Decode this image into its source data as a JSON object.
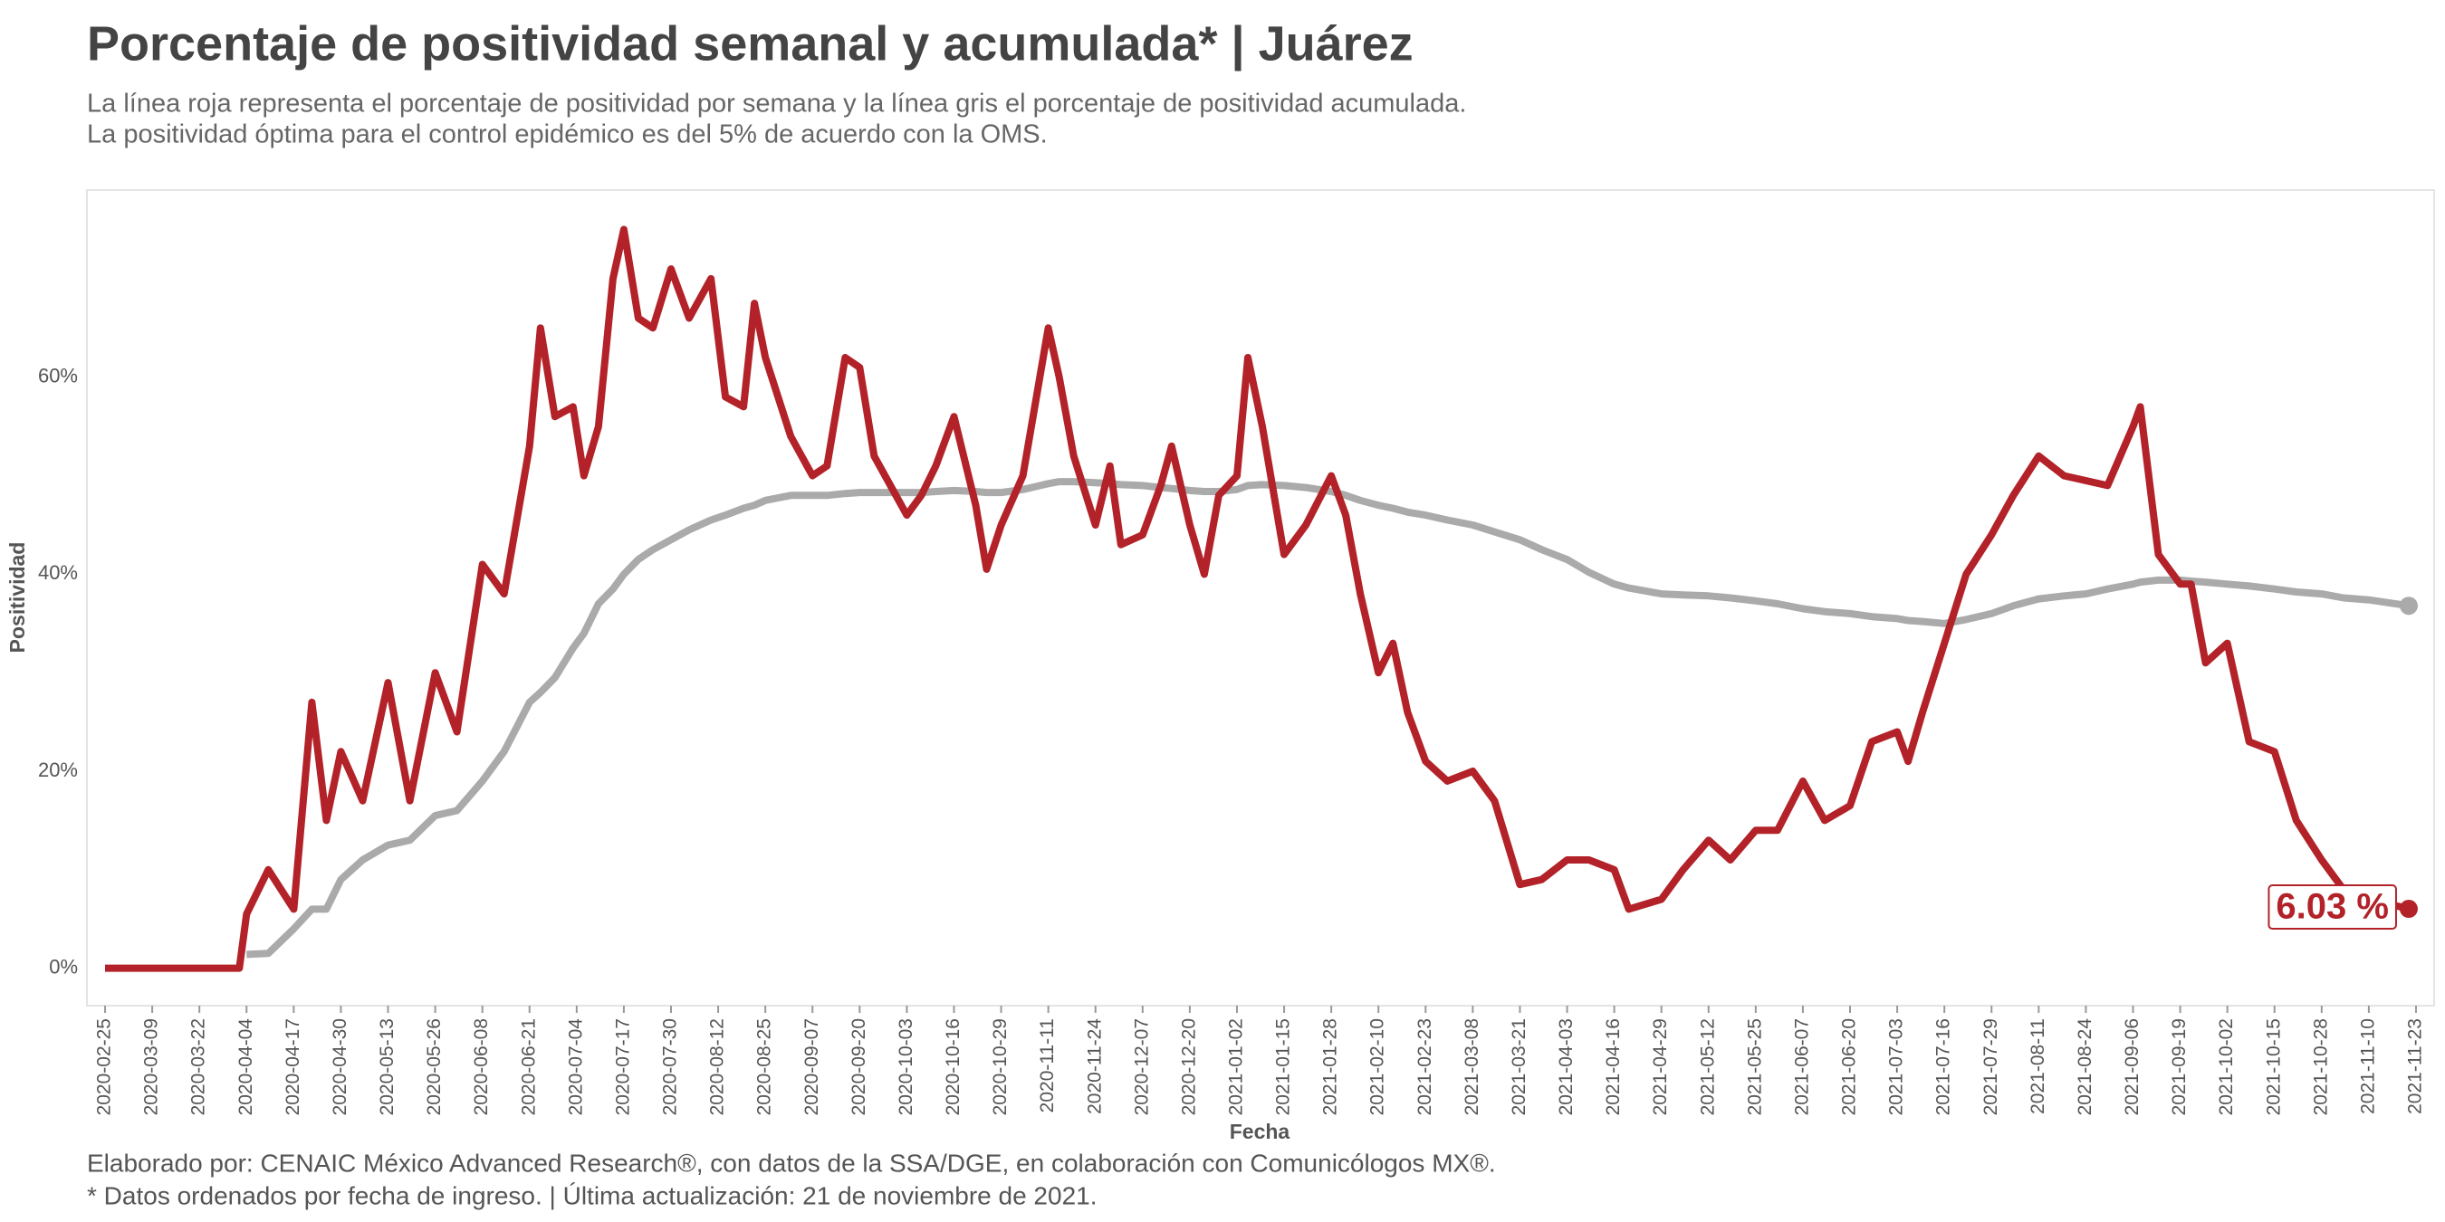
{
  "chart_data": {
    "type": "line",
    "title": "Porcentaje de positividad semanal y acumulada* | Juárez",
    "subtitle": [
      "La línea roja representa el porcentaje de positividad por semana y la línea gris el porcentaje de positividad acumulada.",
      "La positividad óptima para el control epidémico es del 5% de acuerdo con la OMS."
    ],
    "caption": [
      "Elaborado por: CENAIC México Advanced Research®, con datos de la SSA/DGE, en colaboración con Comunicólogos MX®.",
      "* Datos ordenados por fecha de ingreso. | Última actualización: 21 de noviembre de 2021."
    ],
    "x_label": "Fecha",
    "y_label": "Positividad",
    "x": [
      "2020-02-25",
      "2020-03-09",
      "2020-03-22",
      "2020-04-02",
      "2020-04-04",
      "2020-04-10",
      "2020-04-17",
      "2020-04-22",
      "2020-04-26",
      "2020-04-30",
      "2020-05-06",
      "2020-05-13",
      "2020-05-19",
      "2020-05-26",
      "2020-06-01",
      "2020-06-08",
      "2020-06-14",
      "2020-06-21",
      "2020-06-24",
      "2020-06-28",
      "2020-07-03",
      "2020-07-06",
      "2020-07-10",
      "2020-07-14",
      "2020-07-17",
      "2020-07-21",
      "2020-07-25",
      "2020-07-30",
      "2020-08-04",
      "2020-08-10",
      "2020-08-14",
      "2020-08-19",
      "2020-08-22",
      "2020-08-25",
      "2020-09-01",
      "2020-09-07",
      "2020-09-11",
      "2020-09-16",
      "2020-09-20",
      "2020-09-24",
      "2020-10-03",
      "2020-10-07",
      "2020-10-11",
      "2020-10-16",
      "2020-10-22",
      "2020-10-25",
      "2020-10-29",
      "2020-11-04",
      "2020-11-11",
      "2020-11-14",
      "2020-11-18",
      "2020-11-24",
      "2020-11-28",
      "2020-12-01",
      "2020-12-07",
      "2020-12-12",
      "2020-12-15",
      "2020-12-20",
      "2020-12-24",
      "2020-12-28",
      "2021-01-02",
      "2021-01-05",
      "2021-01-09",
      "2021-01-15",
      "2021-01-21",
      "2021-01-28",
      "2021-02-01",
      "2021-02-05",
      "2021-02-10",
      "2021-02-14",
      "2021-02-18",
      "2021-02-23",
      "2021-03-01",
      "2021-03-08",
      "2021-03-14",
      "2021-03-21",
      "2021-03-27",
      "2021-04-03",
      "2021-04-09",
      "2021-04-16",
      "2021-04-20",
      "2021-04-29",
      "2021-05-05",
      "2021-05-12",
      "2021-05-18",
      "2021-05-25",
      "2021-05-31",
      "2021-06-07",
      "2021-06-13",
      "2021-06-20",
      "2021-06-26",
      "2021-07-03",
      "2021-07-06",
      "2021-07-10",
      "2021-07-16",
      "2021-07-22",
      "2021-07-29",
      "2021-08-04",
      "2021-08-11",
      "2021-08-18",
      "2021-08-24",
      "2021-08-30",
      "2021-09-06",
      "2021-09-08",
      "2021-09-13",
      "2021-09-19",
      "2021-09-22",
      "2021-09-26",
      "2021-10-02",
      "2021-10-08",
      "2021-10-15",
      "2021-10-21",
      "2021-10-28",
      "2021-11-03",
      "2021-11-10",
      "2021-11-21"
    ],
    "series": [
      {
        "color": "#b22228",
        "values": [
          0,
          0,
          0,
          0,
          5.5,
          10,
          6,
          27,
          15,
          22,
          17,
          29,
          17,
          30,
          24,
          41,
          38,
          53,
          65,
          56,
          57,
          50,
          55,
          70,
          75,
          66,
          65,
          71,
          66,
          70,
          58,
          57,
          67.5,
          62,
          54,
          50,
          51,
          62,
          61,
          52,
          46,
          48,
          51,
          56,
          47,
          40.5,
          45,
          50,
          65,
          60,
          52,
          45,
          51,
          43,
          44,
          49,
          53,
          45,
          40,
          48,
          50,
          62,
          55,
          42,
          45,
          50,
          46,
          38,
          30,
          33,
          26,
          21,
          19,
          20,
          17,
          8.5,
          9,
          11,
          11,
          10,
          6,
          7,
          10,
          13,
          11,
          14,
          14,
          19,
          15,
          16.5,
          23,
          24,
          21,
          26,
          33,
          40,
          44,
          48,
          52,
          50,
          49.5,
          49,
          55,
          57,
          42,
          39,
          39,
          31,
          33,
          23,
          22,
          15,
          11,
          8,
          7,
          6.03
        ],
        "value_labels": [
          null,
          null,
          null,
          null,
          null,
          null,
          null,
          null,
          null,
          null,
          null,
          null,
          null,
          null,
          null,
          null,
          null,
          null,
          null,
          null,
          null,
          null,
          null,
          null,
          null,
          null,
          null,
          null,
          null,
          null,
          null,
          null,
          null,
          null,
          null,
          null,
          null,
          null,
          null,
          null,
          null,
          null,
          null,
          null,
          null,
          null,
          null,
          null,
          null,
          null,
          null,
          null,
          null,
          null,
          null,
          null,
          null,
          null,
          null,
          null,
          null,
          null,
          null,
          null,
          null,
          null,
          null,
          null,
          null,
          null,
          null,
          null,
          null,
          null,
          null,
          null,
          null,
          null,
          null,
          null,
          null,
          null,
          null,
          null,
          null,
          null,
          null,
          null,
          null,
          null,
          null,
          null,
          null,
          null,
          null,
          null,
          null,
          null,
          null,
          null,
          null,
          null,
          null,
          null,
          null,
          null,
          null,
          null,
          null,
          null,
          null,
          null,
          null,
          null,
          null,
          "6.03 %"
        ]
      },
      {
        "color": "#aaaaaa",
        "values": [
          null,
          null,
          null,
          null,
          1.4,
          1.5,
          4,
          6,
          6,
          9,
          11,
          12.5,
          13,
          15.5,
          16,
          19,
          22,
          27,
          28,
          29.5,
          32.5,
          34,
          37,
          38.5,
          40,
          41.5,
          42.5,
          43.5,
          44.5,
          45.5,
          46,
          46.7,
          47,
          47.5,
          48,
          48,
          48,
          48.2,
          48.3,
          48.3,
          48.3,
          48.3,
          48.4,
          48.5,
          48.4,
          48.3,
          48.3,
          48.6,
          49.2,
          49.4,
          49.4,
          49.3,
          49.2,
          49.1,
          49,
          48.8,
          48.7,
          48.5,
          48.4,
          48.4,
          48.6,
          49,
          49.1,
          49,
          48.8,
          48.4,
          48,
          47.5,
          47,
          46.7,
          46.3,
          46,
          45.5,
          45,
          44.3,
          43.5,
          42.5,
          41.5,
          40.2,
          39,
          38.6,
          38,
          37.9,
          37.8,
          37.6,
          37.3,
          37,
          36.5,
          36.2,
          36,
          35.7,
          35.5,
          35.3,
          35.2,
          35,
          35.4,
          36,
          36.8,
          37.5,
          37.8,
          38,
          38.5,
          39,
          39.2,
          39.4,
          39.4,
          39.3,
          39.2,
          39,
          38.8,
          38.5,
          38.2,
          38,
          37.6,
          37.4,
          36.8
        ]
      }
    ],
    "xlim": [
      "2020-02-20",
      "2021-11-28"
    ],
    "xticks": [
      "2020-02-25",
      "2020-03-09",
      "2020-03-22",
      "2020-04-04",
      "2020-04-17",
      "2020-04-30",
      "2020-05-13",
      "2020-05-26",
      "2020-06-08",
      "2020-06-21",
      "2020-07-04",
      "2020-07-17",
      "2020-07-30",
      "2020-08-12",
      "2020-08-25",
      "2020-09-07",
      "2020-09-20",
      "2020-10-03",
      "2020-10-16",
      "2020-10-29",
      "2020-11-11",
      "2020-11-24",
      "2020-12-07",
      "2020-12-20",
      "2021-01-02",
      "2021-01-15",
      "2021-01-28",
      "2021-02-10",
      "2021-02-23",
      "2021-03-08",
      "2021-03-21",
      "2021-04-03",
      "2021-04-16",
      "2021-04-29",
      "2021-05-12",
      "2021-05-25",
      "2021-06-07",
      "2021-06-20",
      "2021-07-03",
      "2021-07-16",
      "2021-07-29",
      "2021-08-11",
      "2021-08-24",
      "2021-09-06",
      "2021-09-19",
      "2021-10-02",
      "2021-10-15",
      "2021-10-28",
      "2021-11-10",
      "2021-11-23"
    ],
    "ylim": [
      -3.8,
      79
    ],
    "yticks": [
      {
        "value": 0,
        "label": "0%"
      },
      {
        "value": 20,
        "label": "20%"
      },
      {
        "value": 40,
        "label": "40%"
      },
      {
        "value": 60,
        "label": "60%"
      }
    ],
    "grid": false
  }
}
